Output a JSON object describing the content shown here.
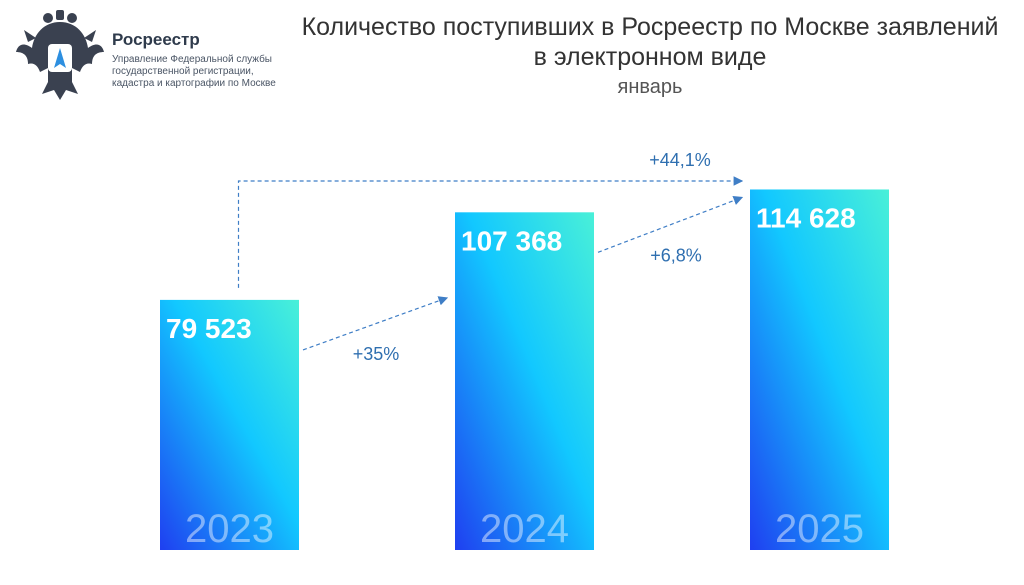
{
  "header": {
    "org_name": "Росреестр",
    "org_sub": "Управление Федеральной службы государственной регистрации, кадастра и картографии по Москве",
    "title": "Количество поступивших в Росреестр по Москве заявлений в электронном виде",
    "subtitle": "январь"
  },
  "colors": {
    "bar_top": "#49f0d8",
    "bar_mid": "#12c8ff",
    "bar_bottom": "#1f3ff0",
    "arrow": "#3f7ec6"
  },
  "chart_data": {
    "type": "bar",
    "title": "Количество поступивших в Росреестр по Москве заявлений в электронном виде",
    "subtitle": "январь",
    "categories": [
      "2023",
      "2024",
      "2025"
    ],
    "values": [
      79523,
      107368,
      114628
    ],
    "value_labels": [
      "79 523",
      "107 368",
      "114 628"
    ],
    "ylim": [
      0,
      124000
    ],
    "grid": false,
    "annotations": [
      {
        "from": "2023",
        "to": "2024",
        "text": "+35%"
      },
      {
        "from": "2024",
        "to": "2025",
        "text": "+6,8%"
      },
      {
        "from": "2023",
        "to": "2025",
        "text": "+44,1%"
      }
    ]
  }
}
